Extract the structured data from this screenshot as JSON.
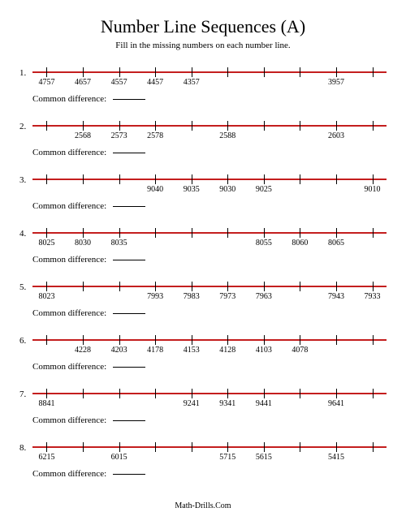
{
  "title": "Number Line Sequences (A)",
  "instruction": "Fill in the missing numbers on each number line.",
  "common_diff_label": "Common difference:",
  "footer": "Math-Drills.Com",
  "line_color": "#c41e1e",
  "tick_color": "#000000",
  "num_ticks": 10,
  "problems": [
    {
      "num": "1.",
      "labels": [
        "4757",
        "4657",
        "4557",
        "4457",
        "4357",
        "",
        "",
        "",
        "3957",
        ""
      ]
    },
    {
      "num": "2.",
      "labels": [
        "",
        "2568",
        "2573",
        "2578",
        "",
        "2588",
        "",
        "",
        "2603",
        ""
      ]
    },
    {
      "num": "3.",
      "labels": [
        "",
        "",
        "",
        "9040",
        "9035",
        "9030",
        "9025",
        "",
        "",
        "9010"
      ]
    },
    {
      "num": "4.",
      "labels": [
        "8025",
        "8030",
        "8035",
        "",
        "",
        "",
        "8055",
        "8060",
        "8065",
        ""
      ]
    },
    {
      "num": "5.",
      "labels": [
        "8023",
        "",
        "",
        "7993",
        "7983",
        "7973",
        "7963",
        "",
        "7943",
        "7933"
      ]
    },
    {
      "num": "6.",
      "labels": [
        "",
        "4228",
        "4203",
        "4178",
        "4153",
        "4128",
        "4103",
        "4078",
        "",
        ""
      ]
    },
    {
      "num": "7.",
      "labels": [
        "8841",
        "",
        "",
        "",
        "9241",
        "9341",
        "9441",
        "",
        "9641",
        ""
      ]
    },
    {
      "num": "8.",
      "labels": [
        "6215",
        "",
        "6015",
        "",
        "",
        "5715",
        "5615",
        "",
        "5415",
        ""
      ]
    }
  ]
}
